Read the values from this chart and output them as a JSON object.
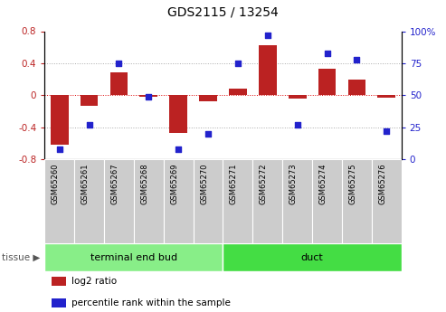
{
  "title": "GDS2115 / 13254",
  "samples": [
    "GSM65260",
    "GSM65261",
    "GSM65267",
    "GSM65268",
    "GSM65269",
    "GSM65270",
    "GSM65271",
    "GSM65272",
    "GSM65273",
    "GSM65274",
    "GSM65275",
    "GSM65276"
  ],
  "log2_ratio": [
    -0.62,
    -0.13,
    0.28,
    -0.02,
    -0.47,
    -0.08,
    0.08,
    0.63,
    -0.04,
    0.33,
    0.2,
    -0.03
  ],
  "percentile": [
    8,
    27,
    75,
    49,
    8,
    20,
    75,
    97,
    27,
    83,
    78,
    22
  ],
  "bar_color": "#bb2222",
  "dot_color": "#2222cc",
  "ylim_left": [
    -0.8,
    0.8
  ],
  "ylim_right": [
    0,
    100
  ],
  "yticks_left": [
    -0.8,
    -0.4,
    0.0,
    0.4,
    0.8
  ],
  "yticks_right": [
    0,
    25,
    50,
    75,
    100
  ],
  "tissue_groups": [
    {
      "label": "terminal end bud",
      "start": 0,
      "end": 6,
      "color": "#88ee88"
    },
    {
      "label": "duct",
      "start": 6,
      "end": 12,
      "color": "#44dd44"
    }
  ],
  "tissue_label": "tissue",
  "legend_entries": [
    {
      "label": "log2 ratio",
      "color": "#bb2222"
    },
    {
      "label": "percentile rank within the sample",
      "color": "#2222cc"
    }
  ]
}
